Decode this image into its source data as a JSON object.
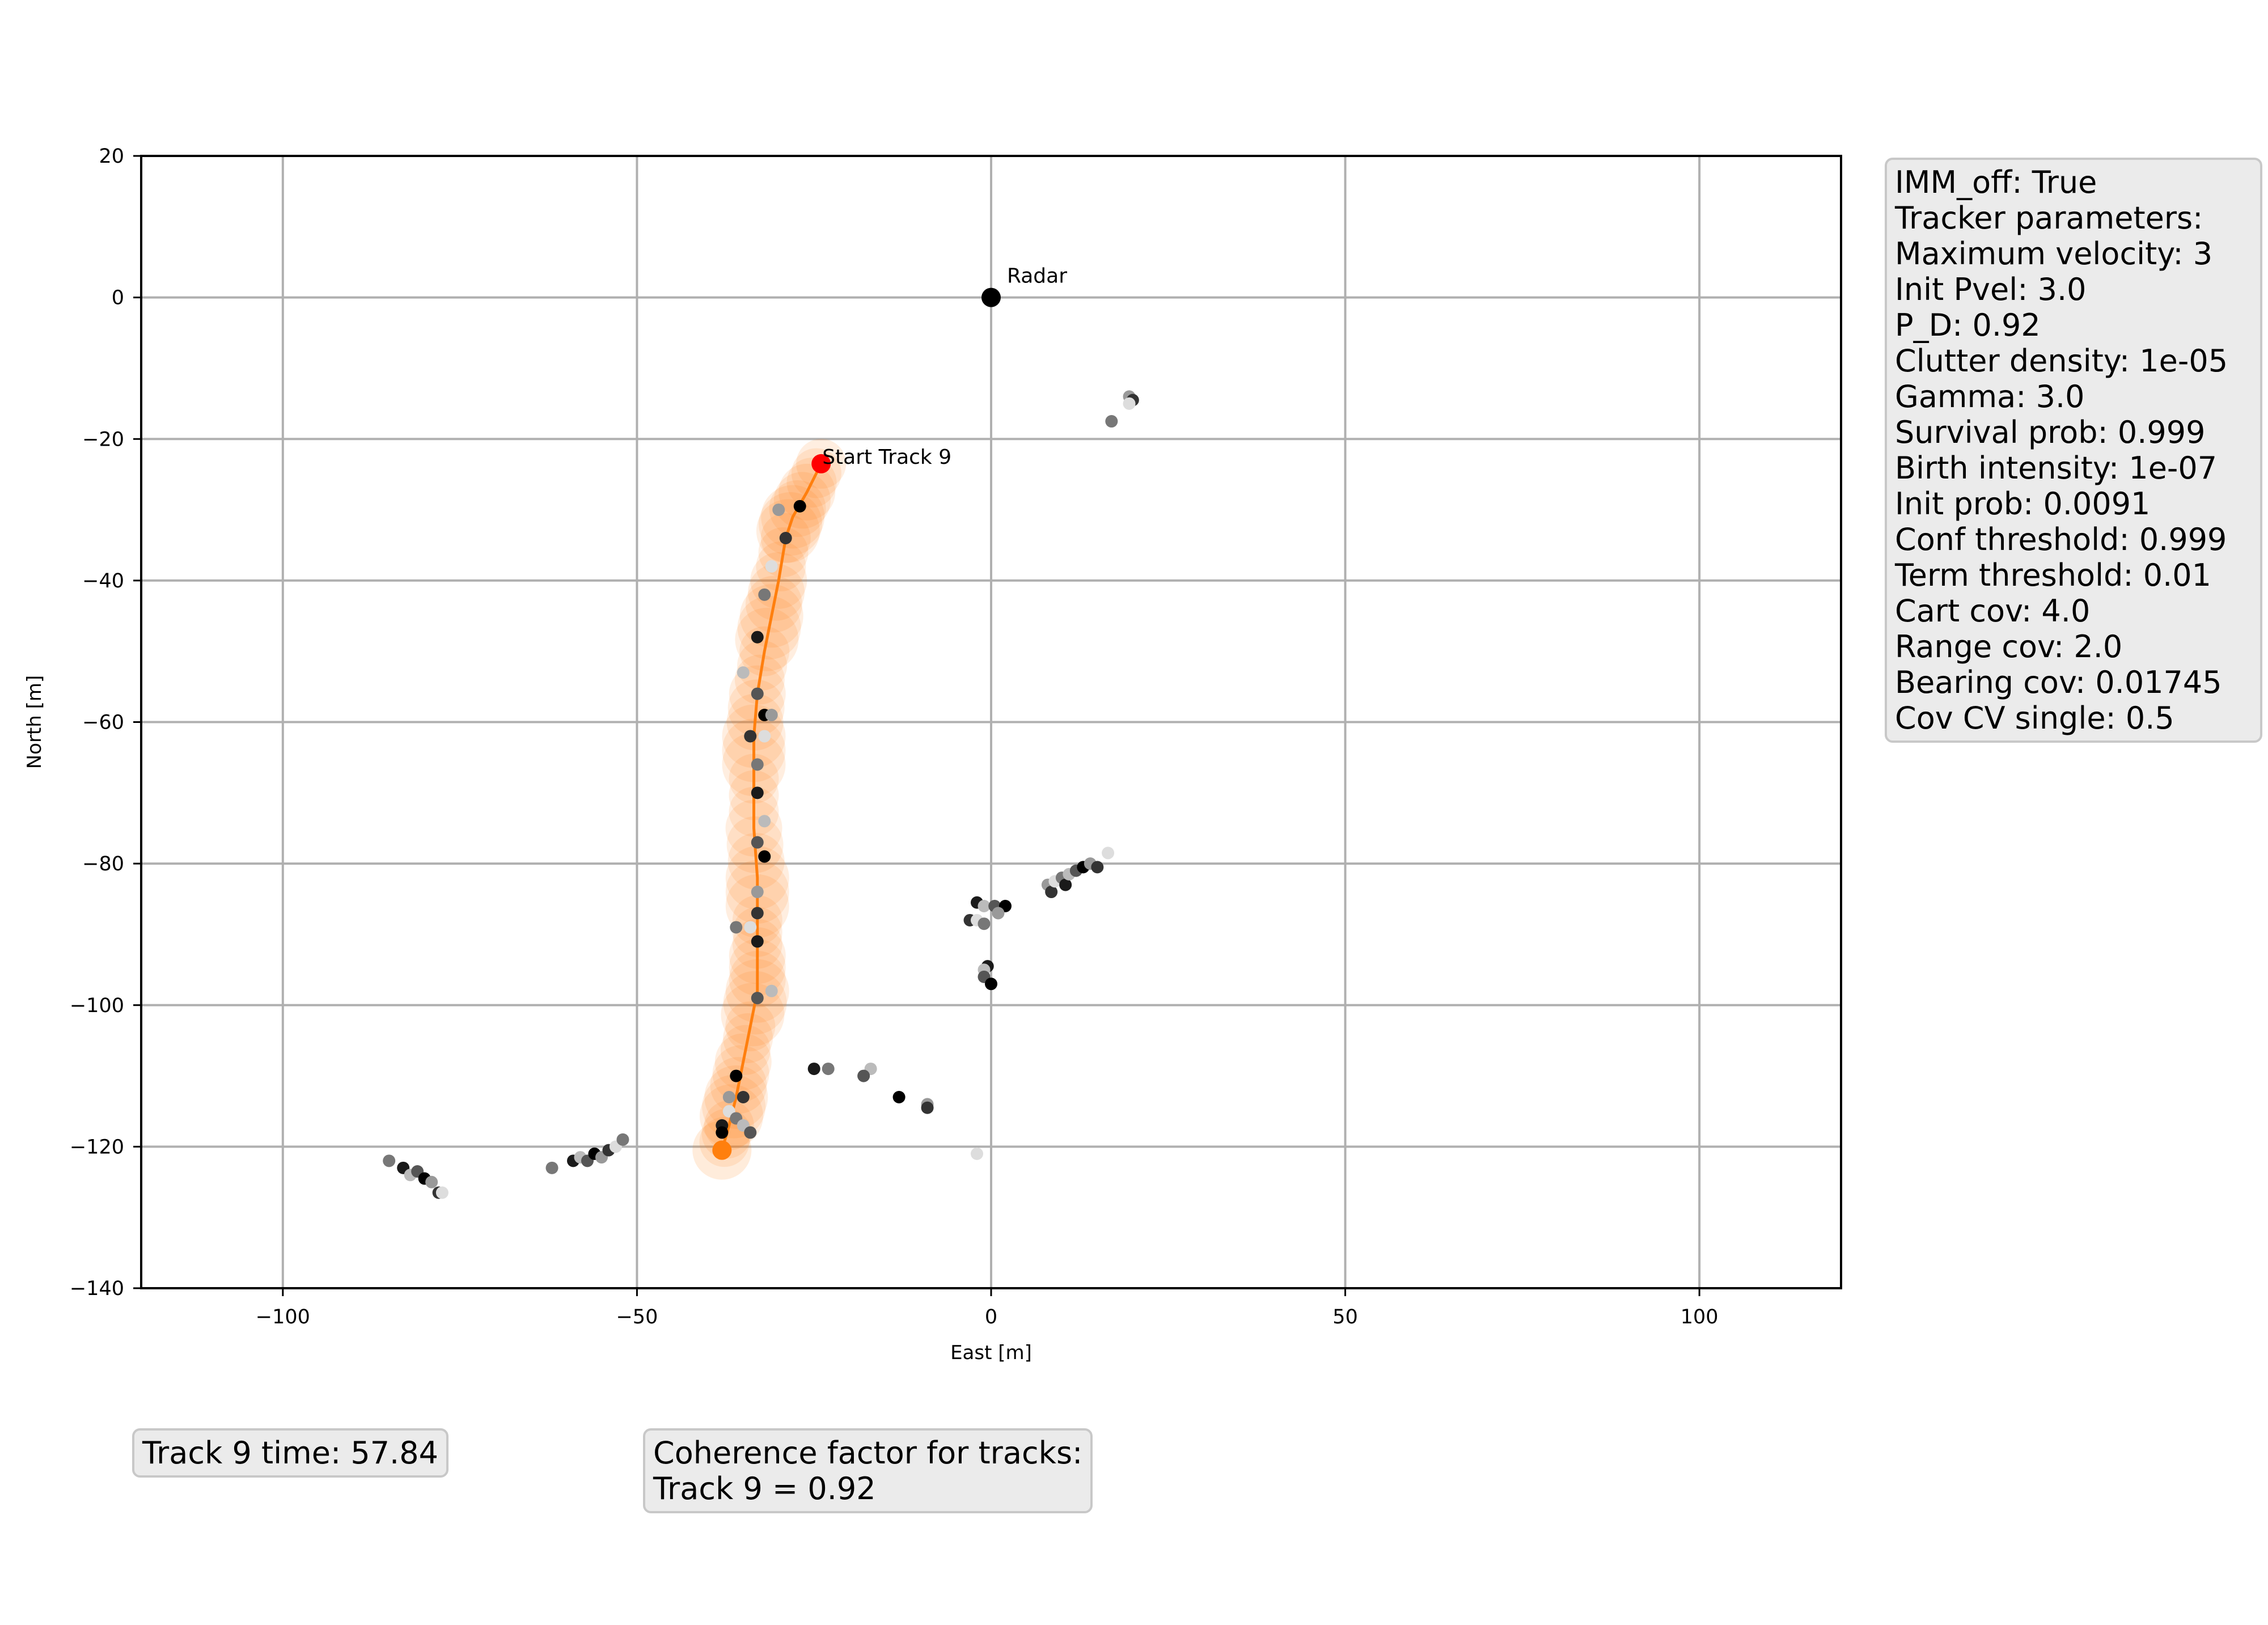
{
  "chart_data": {
    "type": "scatter",
    "xlabel": "East [m]",
    "ylabel": "North [m]",
    "xlim": [
      -120,
      120
    ],
    "ylim": [
      -140,
      20
    ],
    "xticks": [
      -100,
      -50,
      0,
      50,
      100
    ],
    "yticks": [
      20,
      0,
      -20,
      -40,
      -60,
      -80,
      -100,
      -120,
      -140
    ],
    "grid": true,
    "annotations": [
      {
        "text": "Radar",
        "x": 0,
        "y": 0
      },
      {
        "text": "Start Track 9",
        "x": -24,
        "y": -23.5
      }
    ],
    "radar": {
      "x": 0,
      "y": 0
    },
    "track": {
      "name": "Track 9",
      "start": {
        "x": -24,
        "y": -23.5
      },
      "end": {
        "x": -38,
        "y": -120.5
      },
      "path": [
        [
          -24,
          -23.5
        ],
        [
          -26,
          -27.5
        ],
        [
          -28,
          -31
        ],
        [
          -29,
          -34
        ],
        [
          -30,
          -40
        ],
        [
          -31,
          -45
        ],
        [
          -32,
          -50
        ],
        [
          -33,
          -56
        ],
        [
          -33.5,
          -62
        ],
        [
          -33.5,
          -68
        ],
        [
          -33.5,
          -75
        ],
        [
          -33,
          -82
        ],
        [
          -33,
          -88
        ],
        [
          -33,
          -93
        ],
        [
          -33,
          -98
        ],
        [
          -34,
          -103
        ],
        [
          -35,
          -108
        ],
        [
          -36,
          -113
        ],
        [
          -37,
          -117
        ],
        [
          -38,
          -120.5
        ]
      ]
    },
    "detections": [
      [
        -27,
        -29.5
      ],
      [
        -30,
        -30
      ],
      [
        -29,
        -34
      ],
      [
        -31,
        -38
      ],
      [
        -32,
        -42
      ],
      [
        -33,
        -48
      ],
      [
        -35,
        -53
      ],
      [
        -33,
        -56
      ],
      [
        -32,
        -59
      ],
      [
        -31,
        -59
      ],
      [
        -34,
        -62
      ],
      [
        -32,
        -62
      ],
      [
        -33,
        -66
      ],
      [
        -33,
        -70
      ],
      [
        -32,
        -74
      ],
      [
        -33,
        -77
      ],
      [
        -32,
        -79
      ],
      [
        -33,
        -84
      ],
      [
        -33,
        -87
      ],
      [
        -34,
        -89
      ],
      [
        -36,
        -89
      ],
      [
        -33,
        -91
      ],
      [
        -31,
        -98
      ],
      [
        -33,
        -99
      ],
      [
        -36,
        -110
      ],
      [
        -37,
        -113
      ],
      [
        -35,
        -113
      ],
      [
        -37,
        -115
      ],
      [
        -36,
        -116
      ],
      [
        -38,
        -117
      ],
      [
        -35,
        -117
      ],
      [
        -34,
        -118
      ],
      [
        -38,
        -118
      ],
      [
        19.5,
        -14
      ],
      [
        20,
        -14.5
      ],
      [
        19.5,
        -15
      ],
      [
        17,
        -17.5
      ],
      [
        -2,
        -85.5
      ],
      [
        -1,
        -86
      ],
      [
        0.5,
        -86
      ],
      [
        2,
        -86
      ],
      [
        1,
        -87
      ],
      [
        -3,
        -88
      ],
      [
        -2,
        -88
      ],
      [
        -1,
        -88.5
      ],
      [
        -0.5,
        -94.5
      ],
      [
        -1,
        -95
      ],
      [
        -1,
        -96
      ],
      [
        0,
        -97
      ],
      [
        8,
        -83
      ],
      [
        8.5,
        -84
      ],
      [
        9,
        -82.5
      ],
      [
        10,
        -82
      ],
      [
        10.5,
        -83
      ],
      [
        11,
        -81.5
      ],
      [
        12,
        -81
      ],
      [
        13,
        -80.5
      ],
      [
        14,
        -80
      ],
      [
        15,
        -80.5
      ],
      [
        16.5,
        -78.5
      ],
      [
        -23,
        -109
      ],
      [
        -25,
        -109
      ],
      [
        -17,
        -109
      ],
      [
        -18,
        -110
      ],
      [
        -13,
        -113
      ],
      [
        -9,
        -114
      ],
      [
        -9,
        -114.5
      ],
      [
        -2,
        -121
      ],
      [
        -85,
        -122
      ],
      [
        -83,
        -123
      ],
      [
        -82,
        -124
      ],
      [
        -81,
        -123.5
      ],
      [
        -80,
        -124.5
      ],
      [
        -79,
        -125
      ],
      [
        -78,
        -126.5
      ],
      [
        -77.5,
        -126.5
      ],
      [
        -62,
        -123
      ],
      [
        -59,
        -122
      ],
      [
        -58,
        -121.5
      ],
      [
        -57,
        -122
      ],
      [
        -56,
        -121
      ],
      [
        -55,
        -121.5
      ],
      [
        -54,
        -120.5
      ],
      [
        -53,
        -120
      ],
      [
        -52,
        -119
      ]
    ]
  },
  "parameters_box": {
    "lines": [
      "IMM_off: True",
      "Tracker parameters:",
      "Maximum velocity: 3",
      "Init Pvel: 3.0",
      "P_D: 0.92",
      "Clutter density: 1e-05",
      "Gamma: 3.0",
      "Survival prob: 0.999",
      "Birth intensity: 1e-07",
      "Init prob: 0.0091",
      "Conf threshold: 0.999",
      "Term threshold: 0.01",
      "Cart cov: 4.0",
      "Range cov: 2.0",
      "Bearing cov: 0.01745",
      "Cov CV single: 0.5"
    ]
  },
  "time_box": {
    "text": "Track 9 time: 57.84"
  },
  "coherence_box": {
    "lines": [
      "Coherence factor for tracks:",
      "Track 9 = 0.92"
    ]
  },
  "colors": {
    "track": "#ff7f0e",
    "start_marker": "#ff0000",
    "radar": "#000000",
    "grid": "#b0b0b0",
    "box_background": "#ebebeb"
  }
}
